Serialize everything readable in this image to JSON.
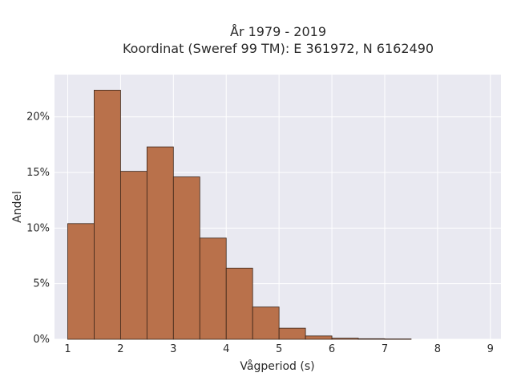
{
  "chart_data": {
    "type": "bar",
    "title_line1": "År 1979 - 2019",
    "title_line2": "Koordinat (Sweref 99 TM): E 361972, N 6162490",
    "xlabel": "Vågperiod (s)",
    "ylabel": "Andel",
    "bin_edges": [
      1.0,
      1.5,
      2.0,
      2.5,
      3.0,
      3.5,
      4.0,
      4.5,
      5.0,
      5.5,
      6.0,
      6.5,
      7.0,
      7.5
    ],
    "values": [
      10.4,
      22.4,
      15.1,
      17.3,
      14.6,
      9.1,
      6.4,
      2.9,
      1.0,
      0.3,
      0.1,
      0.05,
      0.03
    ],
    "xlim": [
      0.75,
      9.2
    ],
    "ylim": [
      0,
      23.8
    ],
    "x_ticks": [
      {
        "value": 1,
        "label": "1"
      },
      {
        "value": 2,
        "label": "2"
      },
      {
        "value": 3,
        "label": "3"
      },
      {
        "value": 4,
        "label": "4"
      },
      {
        "value": 5,
        "label": "5"
      },
      {
        "value": 6,
        "label": "6"
      },
      {
        "value": 7,
        "label": "7"
      },
      {
        "value": 8,
        "label": "8"
      },
      {
        "value": 9,
        "label": "9"
      }
    ],
    "y_ticks": [
      {
        "value": 0,
        "label": "0%"
      },
      {
        "value": 5,
        "label": "5%"
      },
      {
        "value": 10,
        "label": "10%"
      },
      {
        "value": 15,
        "label": "15%"
      },
      {
        "value": 20,
        "label": "20%"
      }
    ],
    "grid": true,
    "colors": {
      "bar_fill": "#b9714b",
      "bar_stroke": "#3a2418",
      "plot_bg": "#e9e9f1",
      "grid": "#ffffff"
    }
  }
}
